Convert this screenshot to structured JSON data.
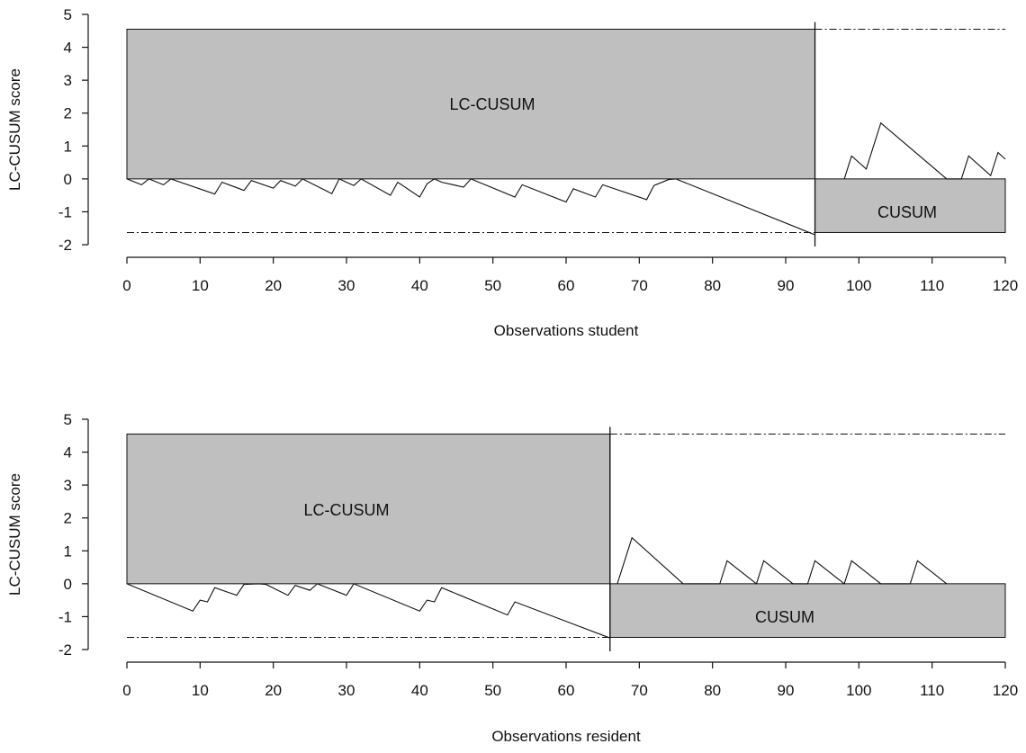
{
  "chart_data": [
    {
      "type": "line",
      "ylabel": "LC-CUSUM score",
      "xlabel": "Observations student",
      "xlim": [
        0,
        120
      ],
      "ylim": [
        -2,
        5
      ],
      "xticks": [
        0,
        10,
        20,
        30,
        40,
        50,
        60,
        70,
        80,
        90,
        100,
        110,
        120
      ],
      "yticks": [
        -2,
        -1,
        0,
        1,
        2,
        3,
        4,
        5
      ],
      "switch_x": 94,
      "regions": [
        {
          "label": "LC-CUSUM",
          "x": [
            0,
            94
          ],
          "y": [
            0,
            4.55
          ],
          "fill": "#bfbfbf"
        },
        {
          "label": "CUSUM",
          "x": [
            94,
            120
          ],
          "y": [
            -1.63,
            0
          ],
          "fill": "#bfbfbf"
        }
      ],
      "reference_lines": [
        {
          "y": -1.63,
          "x": [
            0,
            94
          ],
          "style": "dash-dot"
        },
        {
          "y": 4.55,
          "x": [
            94,
            120
          ],
          "style": "dash-dot"
        }
      ],
      "series": [
        {
          "x": [
            0,
            2,
            3,
            5,
            6,
            12,
            13,
            16,
            17,
            20,
            21,
            23,
            24,
            28,
            29,
            31,
            32,
            36,
            37,
            40,
            41,
            42,
            43,
            46,
            47,
            53,
            54,
            60,
            61,
            64,
            65,
            71,
            72,
            74,
            75,
            94
          ],
          "y": [
            0,
            -0.18,
            0,
            -0.18,
            0,
            -0.46,
            -0.1,
            -0.35,
            -0.05,
            -0.28,
            -0.05,
            -0.22,
            0,
            -0.45,
            0,
            -0.2,
            0,
            -0.5,
            -0.1,
            -0.55,
            -0.15,
            0,
            -0.1,
            -0.25,
            0,
            -0.55,
            -0.18,
            -0.7,
            -0.3,
            -0.55,
            -0.18,
            -0.63,
            -0.2,
            -0.02,
            0,
            -1.7
          ]
        },
        {
          "x": [
            98,
            99,
            101,
            103,
            112,
            114,
            115,
            118,
            119,
            120
          ],
          "y": [
            0,
            0.7,
            0.3,
            1.7,
            0,
            0,
            0.7,
            0.1,
            0.8,
            0.6
          ]
        }
      ],
      "annotations": [
        "LC-CUSUM",
        "CUSUM"
      ]
    },
    {
      "type": "line",
      "ylabel": "LC-CUSUM score",
      "xlabel": "Observations resident",
      "xlim": [
        0,
        120
      ],
      "ylim": [
        -2,
        5
      ],
      "xticks": [
        0,
        10,
        20,
        30,
        40,
        50,
        60,
        70,
        80,
        90,
        100,
        110,
        120
      ],
      "yticks": [
        -2,
        -1,
        0,
        1,
        2,
        3,
        4,
        5
      ],
      "switch_x": 66,
      "regions": [
        {
          "label": "LC-CUSUM",
          "x": [
            0,
            66
          ],
          "y": [
            0,
            4.55
          ],
          "fill": "#bfbfbf"
        },
        {
          "label": "CUSUM",
          "x": [
            66,
            120
          ],
          "y": [
            -1.63,
            0
          ],
          "fill": "#bfbfbf"
        }
      ],
      "reference_lines": [
        {
          "y": -1.63,
          "x": [
            0,
            66
          ],
          "style": "dash-dot"
        },
        {
          "y": 4.55,
          "x": [
            66,
            120
          ],
          "style": "dash-dot"
        }
      ],
      "series": [
        {
          "x": [
            0,
            9,
            10,
            11,
            12,
            15,
            16,
            18,
            19,
            22,
            23,
            25,
            26,
            30,
            31,
            40,
            41,
            42,
            43,
            52,
            53,
            66
          ],
          "y": [
            0,
            -0.83,
            -0.5,
            -0.55,
            -0.12,
            -0.35,
            -0.02,
            0,
            -0.02,
            -0.35,
            -0.05,
            -0.2,
            0,
            -0.35,
            0,
            -0.83,
            -0.5,
            -0.55,
            -0.12,
            -0.95,
            -0.55,
            -1.65
          ]
        },
        {
          "x": [
            67,
            69,
            76,
            81,
            82,
            86,
            87,
            91,
            93,
            94,
            98,
            99,
            103,
            107,
            108,
            112
          ],
          "y": [
            0,
            1.4,
            0,
            0,
            0.7,
            0,
            0.7,
            0,
            0,
            0.7,
            0,
            0.7,
            0,
            0,
            0.7,
            0
          ]
        }
      ],
      "annotations": [
        "LC-CUSUM",
        "CUSUM"
      ]
    }
  ]
}
